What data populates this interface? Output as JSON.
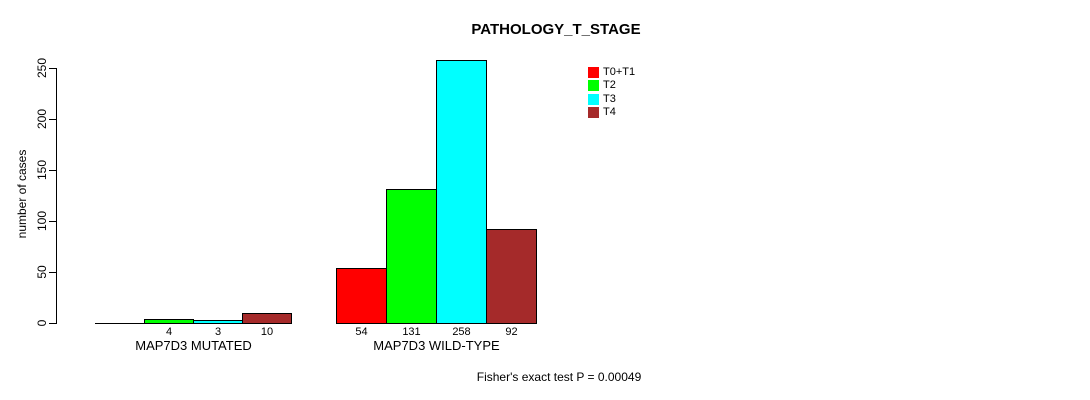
{
  "chart_data": {
    "type": "bar",
    "title": "PATHOLOGY_T_STAGE",
    "ylabel": "number of cases",
    "xlabel": "",
    "ylim": [
      0,
      250
    ],
    "yticks": [
      0,
      50,
      100,
      150,
      200,
      250
    ],
    "grid": false,
    "legend_position": "top-right-inside",
    "categories": [
      "MAP7D3 MUTATED",
      "MAP7D3 WILD-TYPE"
    ],
    "series": [
      {
        "name": "T0+T1",
        "color": "#ff0000",
        "values": [
          0,
          54
        ]
      },
      {
        "name": "T2",
        "color": "#00ff00",
        "values": [
          4,
          131
        ]
      },
      {
        "name": "T3",
        "color": "#00ffff",
        "values": [
          3,
          258
        ]
      },
      {
        "name": "T4",
        "color": "#a52a2a",
        "values": [
          10,
          92
        ]
      }
    ],
    "bar_labels": [
      [
        "",
        "4",
        "3",
        "10"
      ],
      [
        "54",
        "131",
        "258",
        "92"
      ]
    ],
    "footnote": "Fisher's exact test P = 0.00049"
  }
}
